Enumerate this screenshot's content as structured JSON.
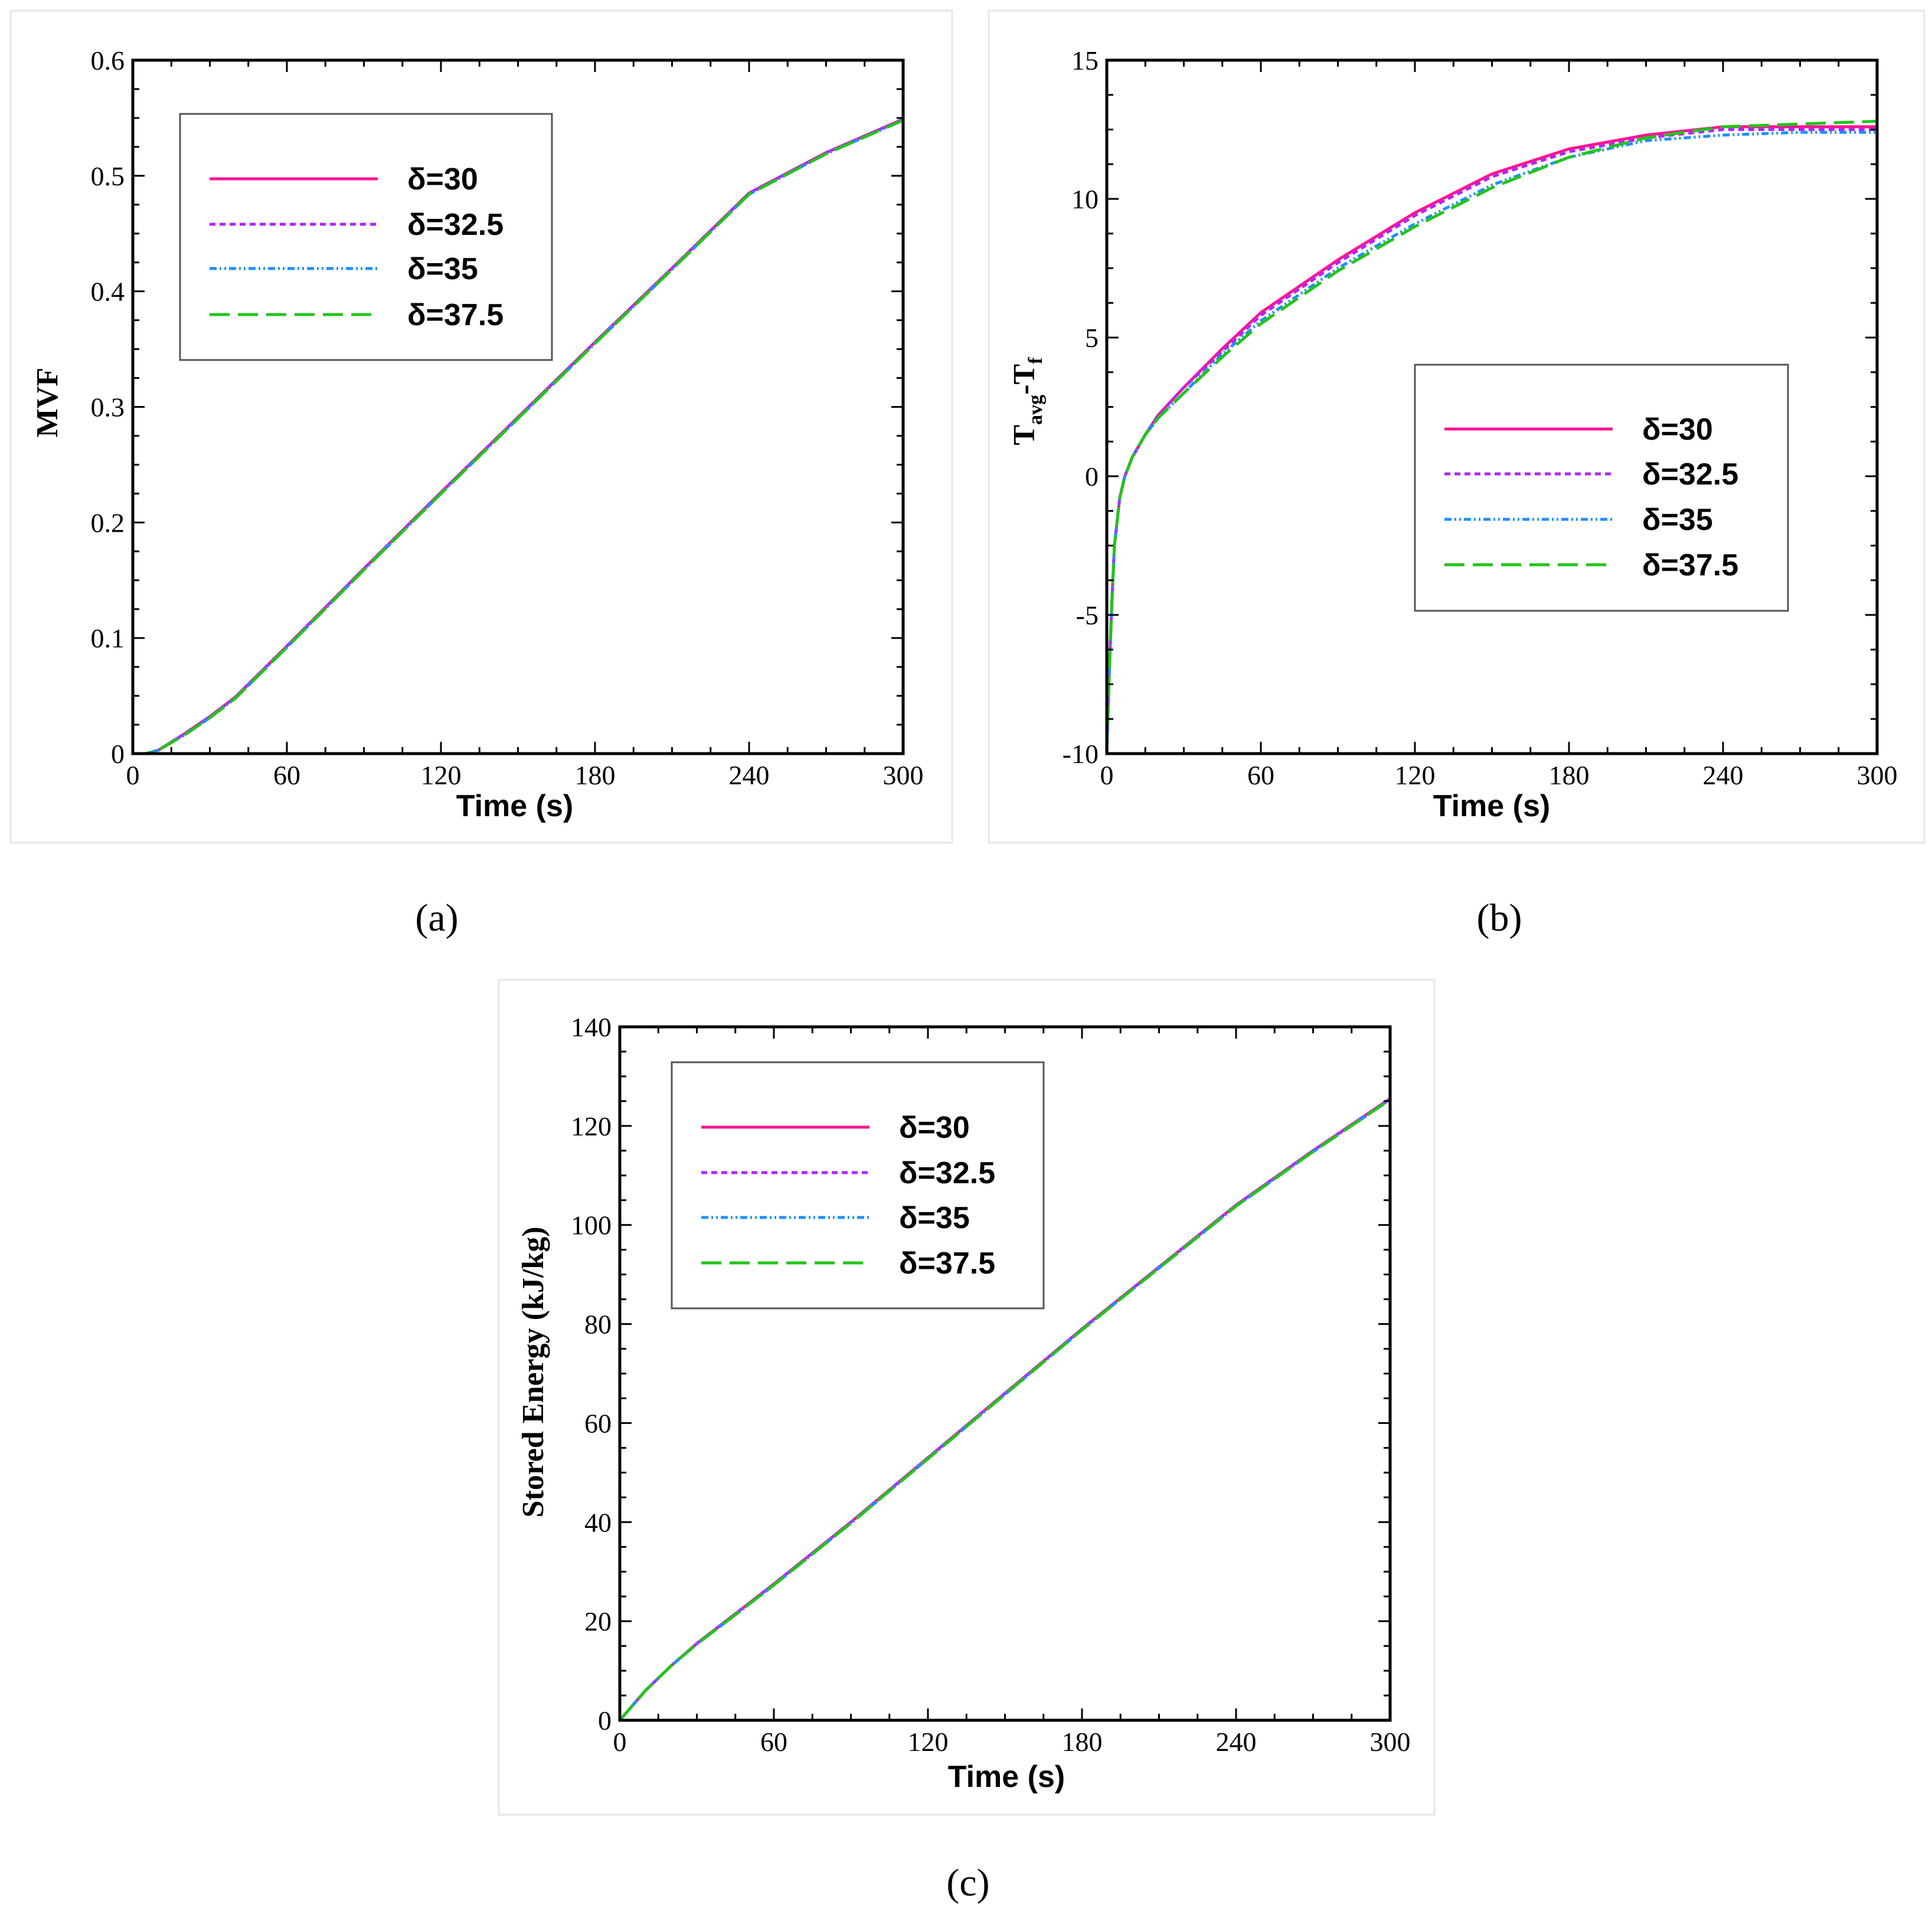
{
  "colors": {
    "d30": "#ff1493",
    "d32_5": "#b026ff",
    "d35": "#1e90ff",
    "d37_5": "#22c41a"
  },
  "chart_data": [
    {
      "id": "a",
      "type": "line",
      "caption": "(a)",
      "xlabel": "Time (s)",
      "ylabel": "MVF",
      "xlim": [
        0,
        300
      ],
      "ylim": [
        0,
        0.6
      ],
      "xticks": [
        0,
        60,
        120,
        180,
        240,
        300
      ],
      "yticks": [
        0,
        0.1,
        0.2,
        0.3,
        0.4,
        0.5,
        0.6
      ],
      "ytick_labels": [
        "0",
        "0.1",
        "0.2",
        "0.3",
        "0.4",
        "0.5",
        "0.6"
      ],
      "legend_position": "top-left",
      "series": [
        {
          "name": "δ=30",
          "x": [
            0,
            5,
            10,
            20,
            30,
            40,
            60,
            90,
            120,
            150,
            180,
            210,
            240,
            270,
            300
          ],
          "y": [
            0,
            0,
            0.003,
            0.017,
            0.032,
            0.049,
            0.093,
            0.16,
            0.226,
            0.291,
            0.356,
            0.42,
            0.485,
            0.52,
            0.549
          ]
        },
        {
          "name": "δ=32.5",
          "x": [
            0,
            5,
            10,
            20,
            30,
            40,
            60,
            90,
            120,
            150,
            180,
            210,
            240,
            270,
            300
          ],
          "y": [
            0,
            0,
            0.003,
            0.017,
            0.032,
            0.049,
            0.093,
            0.16,
            0.226,
            0.291,
            0.356,
            0.42,
            0.485,
            0.52,
            0.549
          ]
        },
        {
          "name": "δ=35",
          "x": [
            0,
            5,
            10,
            20,
            30,
            40,
            60,
            90,
            120,
            150,
            180,
            210,
            240,
            270,
            300
          ],
          "y": [
            0,
            0,
            0.003,
            0.016,
            0.031,
            0.048,
            0.092,
            0.159,
            0.225,
            0.29,
            0.355,
            0.419,
            0.484,
            0.519,
            0.548
          ]
        },
        {
          "name": "δ=37.5",
          "x": [
            0,
            5,
            10,
            20,
            30,
            40,
            60,
            90,
            120,
            150,
            180,
            210,
            240,
            270,
            300
          ],
          "y": [
            0,
            0,
            0.003,
            0.016,
            0.031,
            0.048,
            0.092,
            0.159,
            0.225,
            0.29,
            0.355,
            0.419,
            0.484,
            0.519,
            0.548
          ]
        }
      ]
    },
    {
      "id": "b",
      "type": "line",
      "caption": "(b)",
      "xlabel": "Time (s)",
      "ylabel_main": "T",
      "ylabel_sub1": "avg",
      "ylabel_mid": "-T",
      "ylabel_sub2": "f",
      "xlim": [
        0,
        300
      ],
      "ylim": [
        -10,
        15
      ],
      "xticks": [
        0,
        60,
        120,
        180,
        240,
        300
      ],
      "yticks": [
        -10,
        -5,
        0,
        5,
        10,
        15
      ],
      "ytick_labels": [
        "-10",
        "-5",
        "0",
        "5",
        "10",
        "15"
      ],
      "legend_position": "center-right",
      "series": [
        {
          "name": "δ=30",
          "x": [
            0,
            1,
            2,
            3,
            5,
            7,
            10,
            15,
            20,
            30,
            45,
            60,
            90,
            120,
            150,
            180,
            210,
            240,
            270,
            300
          ],
          "y": [
            -10,
            -7,
            -4.5,
            -2.5,
            -0.8,
            0,
            0.7,
            1.5,
            2.2,
            3.2,
            4.6,
            5.9,
            7.8,
            9.5,
            10.9,
            11.8,
            12.3,
            12.6,
            12.6,
            12.6
          ]
        },
        {
          "name": "δ=32.5",
          "x": [
            0,
            1,
            2,
            3,
            5,
            7,
            10,
            15,
            20,
            30,
            45,
            60,
            90,
            120,
            150,
            180,
            210,
            240,
            270,
            300
          ],
          "y": [
            -10,
            -7,
            -4.5,
            -2.5,
            -0.8,
            0,
            0.7,
            1.5,
            2.2,
            3.2,
            4.5,
            5.8,
            7.7,
            9.4,
            10.8,
            11.7,
            12.2,
            12.5,
            12.5,
            12.5
          ]
        },
        {
          "name": "δ=35",
          "x": [
            0,
            1,
            2,
            3,
            5,
            7,
            10,
            15,
            20,
            30,
            45,
            60,
            90,
            120,
            150,
            180,
            210,
            240,
            270,
            300
          ],
          "y": [
            -10,
            -7,
            -4.5,
            -2.5,
            -0.8,
            0,
            0.7,
            1.5,
            2.1,
            3.0,
            4.4,
            5.6,
            7.5,
            9.1,
            10.5,
            11.5,
            12.1,
            12.3,
            12.4,
            12.4
          ]
        },
        {
          "name": "δ=37.5",
          "x": [
            0,
            1,
            2,
            3,
            5,
            7,
            10,
            15,
            20,
            30,
            45,
            60,
            90,
            120,
            150,
            180,
            210,
            240,
            270,
            300
          ],
          "y": [
            -10,
            -7,
            -4.5,
            -2.5,
            -0.8,
            0,
            0.7,
            1.5,
            2.1,
            3.0,
            4.3,
            5.5,
            7.4,
            9.0,
            10.4,
            11.5,
            12.2,
            12.6,
            12.7,
            12.8
          ]
        }
      ]
    },
    {
      "id": "c",
      "type": "line",
      "caption": "(c)",
      "xlabel": "Time (s)",
      "ylabel": "Stored Energy (kJ/kg)",
      "xlim": [
        0,
        300
      ],
      "ylim": [
        0,
        140
      ],
      "xticks": [
        0,
        60,
        120,
        180,
        240,
        300
      ],
      "yticks": [
        0,
        20,
        40,
        60,
        80,
        100,
        120,
        140
      ],
      "ytick_labels": [
        "0",
        "20",
        "40",
        "60",
        "80",
        "100",
        "120",
        "140"
      ],
      "legend_position": "top-left",
      "series": [
        {
          "name": "δ=30",
          "x": [
            0,
            5,
            10,
            20,
            30,
            45,
            60,
            90,
            120,
            150,
            180,
            210,
            240,
            270,
            300
          ],
          "y": [
            0,
            3,
            6,
            11,
            15.5,
            21.5,
            27.5,
            40,
            53,
            66,
            79,
            91.5,
            104,
            115,
            125.5
          ]
        },
        {
          "name": "δ=32.5",
          "x": [
            0,
            5,
            10,
            20,
            30,
            45,
            60,
            90,
            120,
            150,
            180,
            210,
            240,
            270,
            300
          ],
          "y": [
            0,
            3,
            6,
            11,
            15.5,
            21.5,
            27.5,
            40,
            53,
            66,
            79,
            91.5,
            104,
            115,
            125.5
          ]
        },
        {
          "name": "δ=35",
          "x": [
            0,
            5,
            10,
            20,
            30,
            45,
            60,
            90,
            120,
            150,
            180,
            210,
            240,
            270,
            300
          ],
          "y": [
            0,
            3,
            6,
            11,
            15.4,
            21.3,
            27.3,
            39.8,
            52.8,
            65.8,
            78.8,
            91.3,
            103.8,
            114.8,
            125.3
          ]
        },
        {
          "name": "δ=37.5",
          "x": [
            0,
            5,
            10,
            20,
            30,
            45,
            60,
            90,
            120,
            150,
            180,
            210,
            240,
            270,
            300
          ],
          "y": [
            0,
            3,
            6,
            11,
            15.4,
            21.3,
            27.3,
            39.8,
            52.8,
            65.8,
            78.8,
            91.3,
            103.8,
            114.8,
            125.3
          ]
        }
      ]
    }
  ]
}
